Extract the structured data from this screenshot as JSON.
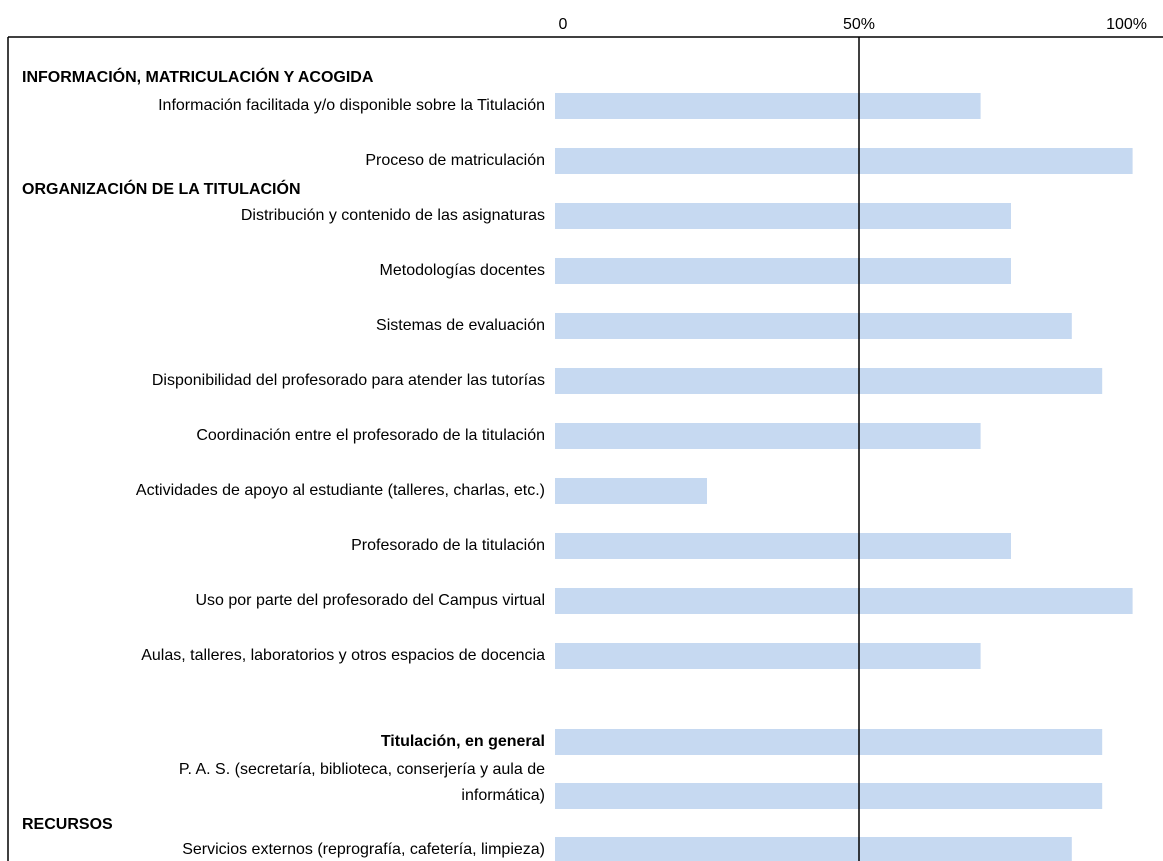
{
  "chart_data": {
    "type": "bar",
    "orientation": "horizontal",
    "annotations": [
      "INFORMACIÓN, MATRICULACIÓN Y ACOGIDA",
      "ORGANIZACIÓN DE LA TITULACIÓN",
      "RECURSOS"
    ],
    "categories": [
      "Información facilitada y/o disponible sobre la Titulación",
      "Proceso de matriculación",
      "Distribución y contenido de las asignaturas",
      "Metodologías docentes",
      "Sistemas de evaluación",
      "Disponibilidad del profesorado para atender las tutorías",
      "Coordinación entre el profesorado de la titulación",
      "Actividades de apoyo al estudiante (talleres, charlas, etc.)",
      "Profesorado de la titulación",
      "Uso por parte del profesorado del Campus virtual",
      "Aulas, talleres, laboratorios y otros espacios de docencia",
      "Titulación, en general",
      "P. A. S. (secretaría, biblioteca, conserjería y aula de\ninformática)",
      "Servicios externos (reprografía, cafetería, limpieza)"
    ],
    "values": [
      70,
      95,
      75,
      75,
      85,
      90,
      70,
      25,
      75,
      95,
      70,
      90,
      90,
      85
    ],
    "color": "#c6d9f1",
    "xlim": [
      0,
      100
    ],
    "xticks": [
      0,
      {
        "value": 50,
        "label": "50%"
      },
      {
        "value": 100,
        "label": "100%"
      }
    ]
  }
}
